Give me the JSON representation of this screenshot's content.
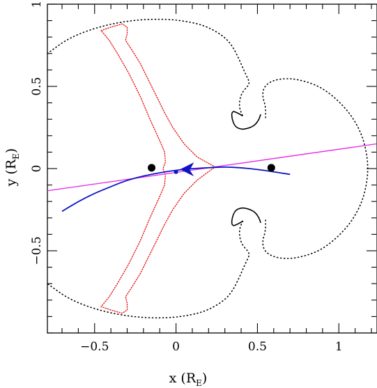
{
  "chart_data": {
    "type": "scatter",
    "title": "",
    "xlabel": "x (R",
    "xlabel_sub": "E",
    "xlabel_close": ")",
    "ylabel": "y (R",
    "ylabel_sub": "E",
    "ylabel_close": ")",
    "xlim": [
      -0.79,
      1.23
    ],
    "ylim": [
      -1.0,
      1.0
    ],
    "xticks": [
      {
        "value": -0.5,
        "label": "−0.5"
      },
      {
        "value": 0,
        "label": "0"
      },
      {
        "value": 0.5,
        "label": "0.5"
      },
      {
        "value": 1,
        "label": "1"
      }
    ],
    "yticks": [
      {
        "value": -0.5,
        "label": "−0.5"
      },
      {
        "value": 0,
        "label": "0"
      },
      {
        "value": 0.5,
        "label": "0.5"
      },
      {
        "value": 1,
        "label": "1"
      }
    ],
    "grid": false,
    "lens_masses": [
      {
        "x": -0.15,
        "y": 0.005
      },
      {
        "x": 0.585,
        "y": 0.005
      }
    ],
    "critical_curve_outer": [
      [
        -0.79,
        0.7
      ],
      [
        -0.65,
        0.8
      ],
      [
        -0.45,
        0.87
      ],
      [
        -0.25,
        0.905
      ],
      [
        -0.05,
        0.91
      ],
      [
        0.1,
        0.89
      ],
      [
        0.2,
        0.86
      ],
      [
        0.3,
        0.8
      ],
      [
        0.35,
        0.74
      ],
      [
        0.39,
        0.66
      ],
      [
        0.42,
        0.59
      ],
      [
        0.445,
        0.54
      ],
      [
        0.45,
        0.52
      ],
      [
        0.44,
        0.5
      ],
      [
        0.42,
        0.48
      ],
      [
        0.4,
        0.45
      ],
      [
        0.39,
        0.41
      ],
      [
        0.39,
        0.37
      ],
      [
        0.4,
        0.34
      ],
      [
        0.41,
        0.32
      ]
    ],
    "critical_curve_right": [
      [
        0.55,
        0.31
      ],
      [
        0.55,
        0.38
      ],
      [
        0.53,
        0.44
      ],
      [
        0.54,
        0.5
      ],
      [
        0.6,
        0.54
      ],
      [
        0.7,
        0.55
      ],
      [
        0.8,
        0.53
      ],
      [
        0.9,
        0.49
      ],
      [
        1.0,
        0.41
      ],
      [
        1.08,
        0.32
      ],
      [
        1.14,
        0.21
      ],
      [
        1.17,
        0.1
      ],
      [
        1.18,
        0.0
      ],
      [
        1.17,
        -0.1
      ],
      [
        1.14,
        -0.21
      ],
      [
        1.08,
        -0.32
      ],
      [
        1.0,
        -0.41
      ],
      [
        0.9,
        -0.49
      ],
      [
        0.8,
        -0.53
      ],
      [
        0.7,
        -0.55
      ],
      [
        0.6,
        -0.54
      ],
      [
        0.54,
        -0.5
      ],
      [
        0.53,
        -0.44
      ],
      [
        0.55,
        -0.38
      ],
      [
        0.55,
        -0.31
      ]
    ],
    "critical_curve_lower": [
      [
        0.41,
        -0.32
      ],
      [
        0.4,
        -0.34
      ],
      [
        0.39,
        -0.37
      ],
      [
        0.39,
        -0.41
      ],
      [
        0.4,
        -0.45
      ],
      [
        0.42,
        -0.48
      ],
      [
        0.44,
        -0.5
      ],
      [
        0.45,
        -0.52
      ],
      [
        0.445,
        -0.54
      ],
      [
        0.42,
        -0.59
      ],
      [
        0.39,
        -0.66
      ],
      [
        0.35,
        -0.74
      ],
      [
        0.3,
        -0.8
      ],
      [
        0.2,
        -0.86
      ],
      [
        0.1,
        -0.89
      ],
      [
        -0.05,
        -0.91
      ],
      [
        -0.25,
        -0.905
      ],
      [
        -0.45,
        -0.87
      ],
      [
        -0.65,
        -0.8
      ],
      [
        -0.79,
        -0.7
      ]
    ],
    "critical_curve_upper_solid": [
      [
        0.41,
        0.32
      ],
      [
        0.375,
        0.34
      ],
      [
        0.35,
        0.35
      ],
      [
        0.34,
        0.33
      ],
      [
        0.35,
        0.28
      ],
      [
        0.37,
        0.25
      ],
      [
        0.4,
        0.24
      ],
      [
        0.42,
        0.24
      ],
      [
        0.46,
        0.25
      ],
      [
        0.49,
        0.27
      ],
      [
        0.51,
        0.3
      ],
      [
        0.52,
        0.33
      ]
    ],
    "critical_curve_lower_solid": [
      [
        0.41,
        -0.32
      ],
      [
        0.375,
        -0.34
      ],
      [
        0.35,
        -0.35
      ],
      [
        0.34,
        -0.33
      ],
      [
        0.35,
        -0.28
      ],
      [
        0.37,
        -0.25
      ],
      [
        0.4,
        -0.24
      ],
      [
        0.42,
        -0.24
      ],
      [
        0.46,
        -0.25
      ],
      [
        0.49,
        -0.27
      ],
      [
        0.51,
        -0.3
      ],
      [
        0.52,
        -0.33
      ]
    ],
    "caustic": [
      [
        -0.46,
        0.84
      ],
      [
        -0.4,
        0.86
      ],
      [
        -0.33,
        0.88
      ],
      [
        -0.3,
        0.86
      ],
      [
        -0.3,
        0.82
      ],
      [
        -0.31,
        0.78
      ],
      [
        -0.27,
        0.72
      ],
      [
        -0.22,
        0.64
      ],
      [
        -0.17,
        0.54
      ],
      [
        -0.12,
        0.44
      ],
      [
        -0.07,
        0.34
      ],
      [
        -0.02,
        0.25
      ],
      [
        0.05,
        0.15
      ],
      [
        0.13,
        0.07
      ],
      [
        0.24,
        0.01
      ],
      [
        0.13,
        -0.07
      ],
      [
        0.05,
        -0.15
      ],
      [
        -0.02,
        -0.25
      ],
      [
        -0.07,
        -0.34
      ],
      [
        -0.12,
        -0.44
      ],
      [
        -0.17,
        -0.54
      ],
      [
        -0.22,
        -0.64
      ],
      [
        -0.27,
        -0.72
      ],
      [
        -0.31,
        -0.78
      ],
      [
        -0.3,
        -0.82
      ],
      [
        -0.3,
        -0.86
      ],
      [
        -0.33,
        -0.88
      ],
      [
        -0.4,
        -0.86
      ],
      [
        -0.46,
        -0.84
      ],
      [
        -0.41,
        -0.78
      ],
      [
        -0.36,
        -0.7
      ],
      [
        -0.29,
        -0.58
      ],
      [
        -0.22,
        -0.44
      ],
      [
        -0.16,
        -0.3
      ],
      [
        -0.1,
        -0.17
      ],
      [
        -0.07,
        -0.1
      ],
      [
        -0.065,
        -0.04
      ],
      [
        -0.08,
        0.0
      ],
      [
        -0.065,
        0.04
      ],
      [
        -0.07,
        0.1
      ],
      [
        -0.1,
        0.17
      ],
      [
        -0.16,
        0.3
      ],
      [
        -0.22,
        0.44
      ],
      [
        -0.29,
        0.58
      ],
      [
        -0.36,
        0.7
      ],
      [
        -0.41,
        0.78
      ],
      [
        -0.46,
        0.84
      ]
    ],
    "source_trajectory": [
      [
        -0.7,
        -0.26
      ],
      [
        -0.6,
        -0.2
      ],
      [
        -0.5,
        -0.15
      ],
      [
        -0.4,
        -0.11
      ],
      [
        -0.3,
        -0.07
      ],
      [
        -0.2,
        -0.045
      ],
      [
        -0.1,
        -0.025
      ],
      [
        0.0,
        -0.01
      ],
      [
        0.1,
        0.0
      ],
      [
        0.2,
        0.005
      ],
      [
        0.3,
        0.01
      ],
      [
        0.4,
        0.005
      ],
      [
        0.5,
        -0.005
      ],
      [
        0.6,
        -0.02
      ],
      [
        0.7,
        -0.035
      ]
    ],
    "source_position": {
      "x": 0.0,
      "y": -0.02
    },
    "binary_axis": [
      [
        -0.79,
        -0.135
      ],
      [
        1.23,
        0.15
      ]
    ],
    "colors": {
      "critical_curve": "#000000",
      "caustic": "#e8191a",
      "trajectory": "#0c14c4",
      "binary_axis": "#e632e6",
      "lens": "#000000"
    }
  }
}
